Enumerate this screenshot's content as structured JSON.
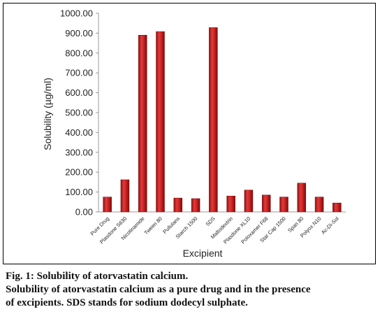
{
  "chart_data": {
    "type": "bar",
    "xlabel": "Excipient",
    "ylabel": "Solubility (µg/ml)",
    "ylim": [
      0,
      1000
    ],
    "yticks": [
      "0.00",
      "100.00",
      "200.00",
      "300.00",
      "400.00",
      "500.00",
      "600.00",
      "700.00",
      "800.00",
      "900.00",
      "1000.00"
    ],
    "categories": [
      "Pure Drug",
      "Plasdone S630",
      "Nicotinamide",
      "Tween 80",
      "Pullulans",
      "Starch 1500",
      "SDS",
      "Maltodextrin",
      "Plasdone XL10",
      "Poloxamer F68",
      "Star Cap 1500",
      "Span 80",
      "Polyox N10",
      "Ac-Di-Sol"
    ],
    "values": [
      75,
      162,
      890,
      908,
      70,
      67,
      928,
      80,
      110,
      85,
      75,
      145,
      75,
      45
    ],
    "bar_color": "#cc2222",
    "grid": false
  },
  "caption": {
    "line1": "Fig. 1: Solubility of atorvastatin calcium.",
    "line2": "Solubility of atorvastatin calcium as a pure drug and in the presence",
    "line3": "of excipients. SDS stands for sodium dodecyl sulphate."
  }
}
